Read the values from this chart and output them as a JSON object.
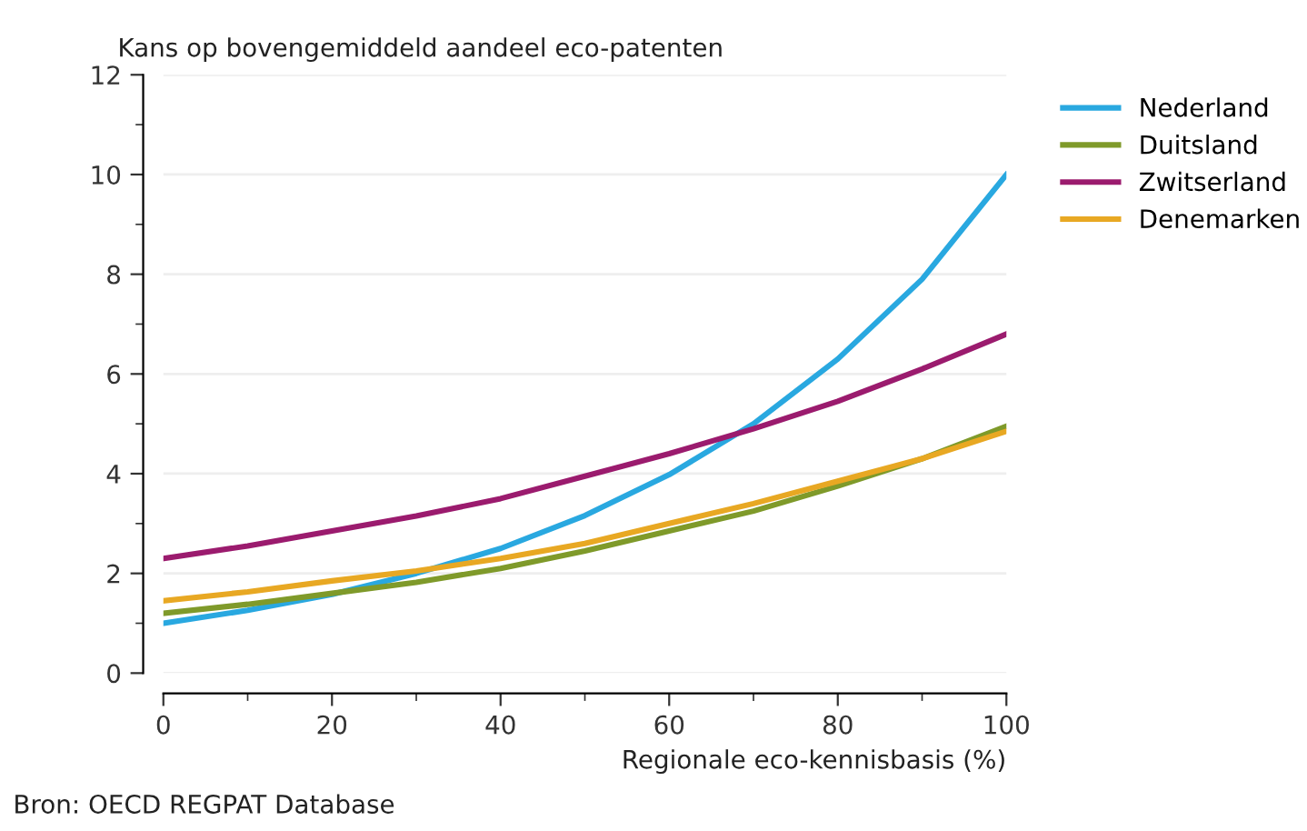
{
  "chart_data": {
    "type": "line",
    "title": "Kans op bovengemiddeld aandeel eco-patenten",
    "xlabel": "Regionale eco-kennisbasis (%)",
    "annotations": [
      "Bron: OECD REGPAT Database"
    ],
    "x": [
      0,
      10,
      20,
      30,
      40,
      50,
      60,
      70,
      80,
      90,
      100
    ],
    "series": [
      {
        "name": "Nederland",
        "color": "#29a8e0",
        "values": [
          1.0,
          1.26,
          1.58,
          2.0,
          2.5,
          3.16,
          3.98,
          5.0,
          6.3,
          7.9,
          10.0
        ]
      },
      {
        "name": "Duitsland",
        "color": "#7f9a2a",
        "values": [
          1.2,
          1.38,
          1.6,
          1.82,
          2.1,
          2.45,
          2.85,
          3.25,
          3.75,
          4.3,
          4.95
        ]
      },
      {
        "name": "Zwitserland",
        "color": "#9b1b6e",
        "values": [
          2.3,
          2.55,
          2.85,
          3.15,
          3.5,
          3.95,
          4.4,
          4.9,
          5.45,
          6.1,
          6.8
        ]
      },
      {
        "name": "Denemarken",
        "color": "#e8a823",
        "values": [
          1.45,
          1.63,
          1.85,
          2.05,
          2.3,
          2.6,
          3.0,
          3.4,
          3.85,
          4.3,
          4.85
        ]
      }
    ],
    "xlim": [
      0,
      100
    ],
    "ylim": [
      0,
      12
    ],
    "xticks": [
      0,
      {
        "value": 10,
        "label": null
      },
      20,
      {
        "value": 30,
        "label": null
      },
      40,
      {
        "value": 50,
        "label": null
      },
      60,
      {
        "value": 70,
        "label": null
      },
      80,
      {
        "value": 90,
        "label": null
      },
      100
    ],
    "yticks": [
      0,
      {
        "value": 1,
        "label": null
      },
      2,
      {
        "value": 3,
        "label": null
      },
      4,
      {
        "value": 5,
        "label": null
      },
      6,
      {
        "value": 7,
        "label": null
      },
      8,
      {
        "value": 9,
        "label": null
      },
      10,
      {
        "value": 11,
        "label": null
      },
      12
    ],
    "grid": "y",
    "legend": "top right",
    "marker": "none",
    "line_style": "solid"
  }
}
